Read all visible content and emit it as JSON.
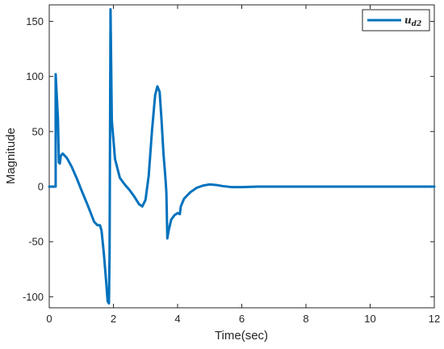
{
  "chart_data": {
    "type": "line",
    "xlabel": "Time(sec)",
    "ylabel": "Magnitude",
    "xlim": [
      0,
      12
    ],
    "ylim": [
      -110,
      165
    ],
    "xticks": [
      0,
      2,
      4,
      6,
      8,
      10,
      12
    ],
    "yticks": [
      -100,
      -50,
      0,
      50,
      100,
      150
    ],
    "grid": false,
    "legend_position": "top-right",
    "series": [
      {
        "name": "u_d2",
        "color": "#0072BD",
        "points": [
          [
            0,
            0
          ],
          [
            0.2,
            0
          ],
          [
            0.2,
            102
          ],
          [
            0.27,
            62
          ],
          [
            0.3,
            22
          ],
          [
            0.33,
            21
          ],
          [
            0.36,
            28
          ],
          [
            0.42,
            30
          ],
          [
            0.55,
            26
          ],
          [
            0.7,
            18
          ],
          [
            0.85,
            8
          ],
          [
            1.0,
            -3
          ],
          [
            1.2,
            -17
          ],
          [
            1.4,
            -32
          ],
          [
            1.5,
            -35
          ],
          [
            1.58,
            -35
          ],
          [
            1.63,
            -40
          ],
          [
            1.7,
            -60
          ],
          [
            1.77,
            -85
          ],
          [
            1.82,
            -104
          ],
          [
            1.86,
            -106
          ],
          [
            1.88,
            -60
          ],
          [
            1.91,
            161
          ],
          [
            1.95,
            60
          ],
          [
            2.05,
            25
          ],
          [
            2.2,
            8
          ],
          [
            2.35,
            2
          ],
          [
            2.5,
            -3
          ],
          [
            2.65,
            -9
          ],
          [
            2.8,
            -16
          ],
          [
            2.9,
            -18
          ],
          [
            3.0,
            -12
          ],
          [
            3.1,
            10
          ],
          [
            3.2,
            50
          ],
          [
            3.3,
            83
          ],
          [
            3.37,
            91
          ],
          [
            3.44,
            86
          ],
          [
            3.5,
            60
          ],
          [
            3.56,
            30
          ],
          [
            3.62,
            8
          ],
          [
            3.65,
            -5
          ],
          [
            3.68,
            -47
          ],
          [
            3.72,
            -40
          ],
          [
            3.8,
            -30
          ],
          [
            3.9,
            -26
          ],
          [
            4.0,
            -24
          ],
          [
            4.07,
            -25
          ],
          [
            4.1,
            -18
          ],
          [
            4.2,
            -11
          ],
          [
            4.4,
            -5
          ],
          [
            4.6,
            -1
          ],
          [
            4.8,
            1
          ],
          [
            5.0,
            2
          ],
          [
            5.2,
            1.5
          ],
          [
            5.4,
            0.5
          ],
          [
            5.7,
            -0.5
          ],
          [
            6.0,
            -0.5
          ],
          [
            6.5,
            0
          ],
          [
            12,
            0
          ]
        ]
      }
    ]
  }
}
